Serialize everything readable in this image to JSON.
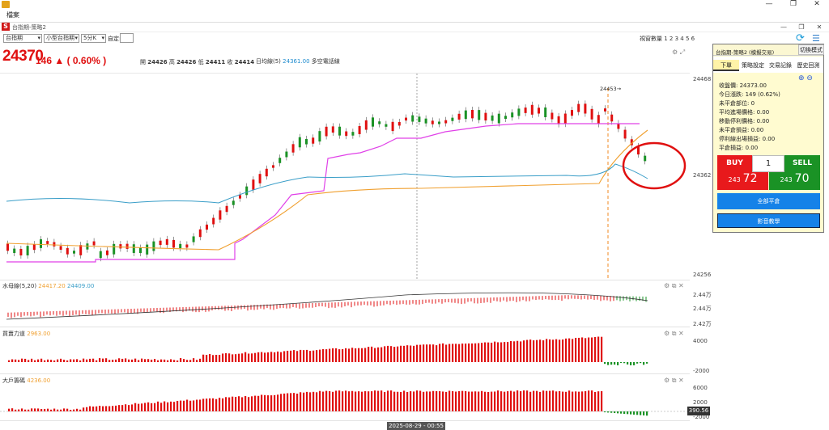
{
  "window": {
    "menu_file": "檔案",
    "minimize": "—",
    "maximize": "❐",
    "close": "✕"
  },
  "inner_window": {
    "title": "台指期-策略2",
    "minimize": "—",
    "restore": "❐",
    "close": "✕"
  },
  "toolbar": {
    "product_select": "台指期",
    "contract_select": "小型台指期",
    "interval_select": "5分K",
    "custom_label": "自定:",
    "custom_value": "",
    "view_count": "視窗數量 1 2 3 4 5 6"
  },
  "quote": {
    "last_price": "24370",
    "change": "146 ▲ ( 0.60% )",
    "open_label": "開",
    "open": "24426",
    "high_label": "高",
    "high": "24426",
    "low_label": "低",
    "low": "24411",
    "close_label": "收",
    "close": "24414",
    "ma_label": "日均線(5)",
    "ma_value": "24361.00",
    "ma_suffix": "多空電話線"
  },
  "main_chart": {
    "y_ticks": [
      "24468",
      "24362",
      "24256"
    ],
    "annotation": "24453→"
  },
  "indicators": [
    {
      "title": "水母線(5,20)",
      "v1": "24417.20",
      "v2": "24409.00",
      "y_ticks": [
        "2.44万",
        "2.44万",
        "2.42万"
      ]
    },
    {
      "title": "買賣力道",
      "v1": "2963.00",
      "y_ticks": [
        "4000",
        "-2000"
      ]
    },
    {
      "title": "大戶籌碼",
      "v1": "4236.00",
      "y_ticks": [
        "6000",
        "2000",
        "-2000"
      ],
      "last_value": "390.56"
    }
  ],
  "date_label": "2025-08-29 - 00:55",
  "trade_panel": {
    "title": "台指期-策略2 (模擬交易)",
    "switch_mode": "切換模式",
    "tabs": [
      "下單",
      "策略設定",
      "交易記錄",
      "歷史回測"
    ],
    "info": [
      "收盤價: 24373.00",
      "今日漲跌: 149 (0.62%)",
      "未平倉部位: 0",
      "平均進場價格: 0.00",
      "移動停利價格: 0.00",
      "未平倉損益: 0.00",
      "停利線出場損益: 0.00",
      "平倉損益: 0.00"
    ],
    "buy_label": "BUY",
    "sell_label": "SELL",
    "qty": "1",
    "buy_price_small": "243",
    "buy_price_big": "72",
    "sell_price_small": "243",
    "sell_price_big": "70",
    "flatten_label": "全部平倉",
    "video_label": "影音教學"
  },
  "colors": {
    "up": "#e01010",
    "down": "#1a9225",
    "magenta_line": "#e040e8",
    "blue_line": "#3a9ec8",
    "orange_line": "#f0a030",
    "buy": "#e8191c",
    "sell": "#1a9225",
    "action_blue": "#1582e8"
  }
}
